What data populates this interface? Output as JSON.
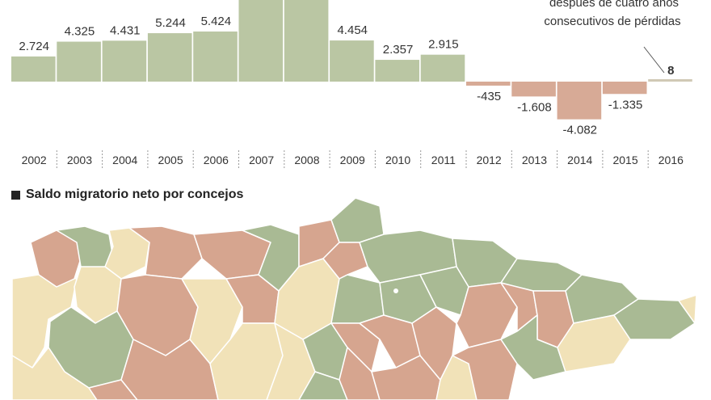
{
  "chart_data": {
    "type": "bar",
    "categories": [
      "2002",
      "2003",
      "2004",
      "2005",
      "2006",
      "2007",
      "2008",
      "2009",
      "2010",
      "2011",
      "2012",
      "2013",
      "2014",
      "2015",
      "2016"
    ],
    "values": [
      2724,
      4325,
      4431,
      5244,
      5424,
      null,
      null,
      4454,
      2357,
      2915,
      -435,
      -1608,
      -4082,
      -1335,
      8
    ],
    "value_labels": [
      "2.724",
      "4.325",
      "4.431",
      "5.244",
      "5.424",
      "",
      "",
      "4.454",
      "2.357",
      "2.915",
      "-435",
      "-1.608",
      "-4.082",
      "-1.335",
      "8"
    ],
    "annotation": [
      "después de cuatro años",
      "consecutivos de pérdidas"
    ],
    "colors": {
      "positive": "#bac6a3",
      "negative": "#d7aa96",
      "baseline_2016": "#d0c9b5"
    }
  },
  "map": {
    "title": "Saldo migratorio neto por concejos",
    "colors": {
      "green": "#a9ba94",
      "salmon": "#d6a58f",
      "cream": "#f1e2b8",
      "border": "#ffffff"
    }
  }
}
